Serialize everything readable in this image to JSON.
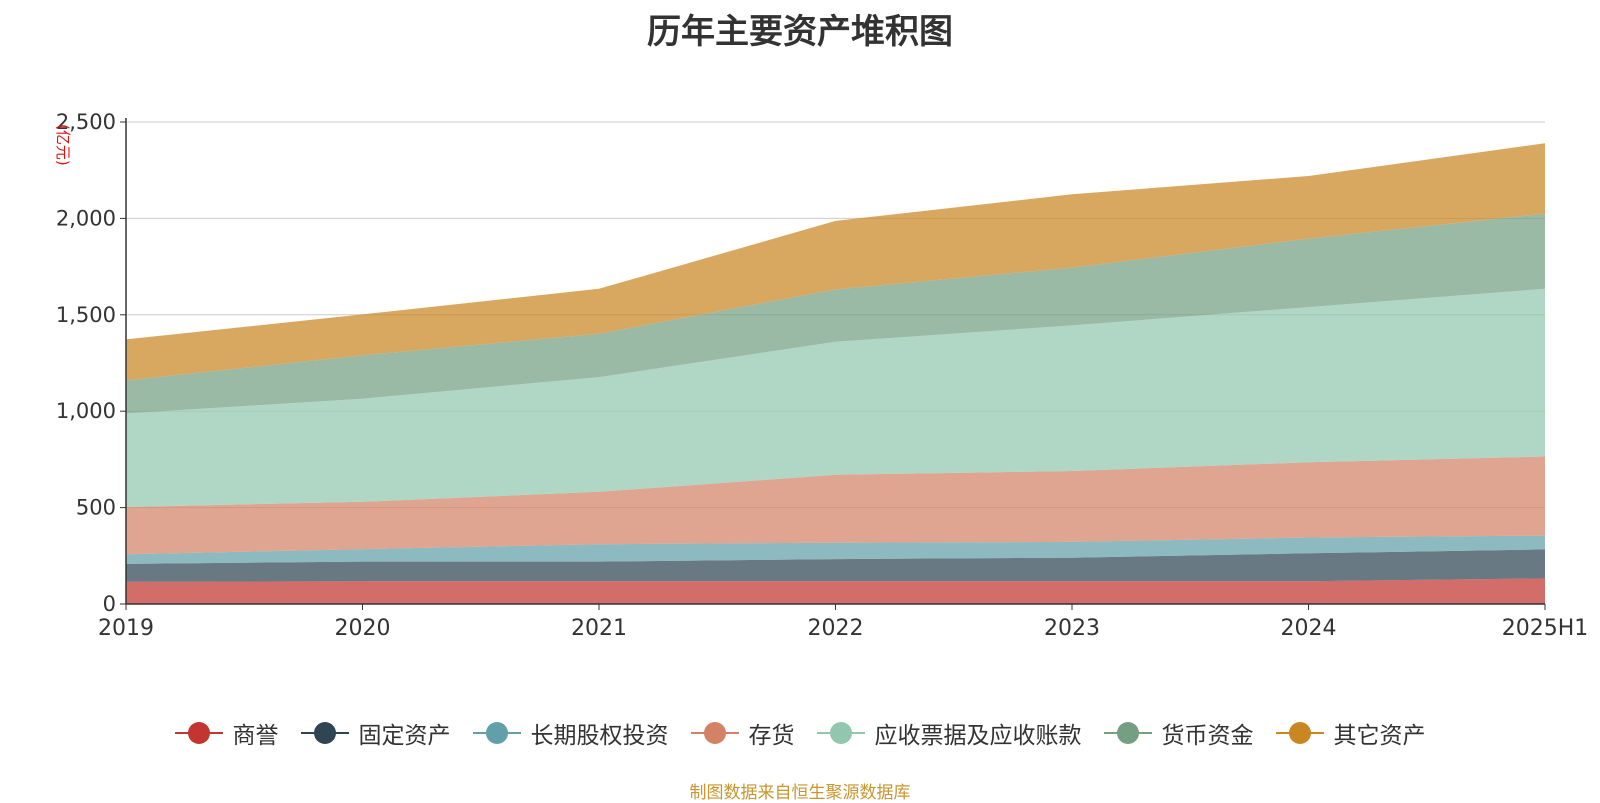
{
  "chart_data": {
    "type": "area",
    "stacked": true,
    "title": "历年主要资产堆积图",
    "unit_label": "亿元",
    "categories": [
      "2019",
      "2020",
      "2021",
      "2022",
      "2023",
      "2024",
      "2025H1"
    ],
    "ylim": [
      0,
      2500
    ],
    "y_ticks": [
      "0",
      "500",
      "1,000",
      "1,500",
      "2,000",
      "2,500"
    ],
    "grid": true,
    "legend_position": "bottom",
    "series": [
      {
        "name": "商誉",
        "color": "#c23531",
        "values": [
          115,
          118,
          118,
          118,
          118,
          118,
          133
        ]
      },
      {
        "name": "固定资产",
        "color": "#2f4554",
        "values": [
          93,
          102,
          102,
          115,
          122,
          145,
          150
        ]
      },
      {
        "name": "长期股权投资",
        "color": "#61a0a8",
        "values": [
          50,
          65,
          90,
          85,
          82,
          82,
          72
        ]
      },
      {
        "name": "存货",
        "color": "#d48265",
        "values": [
          245,
          245,
          272,
          352,
          368,
          390,
          410
        ]
      },
      {
        "name": "应收票据及应收账款",
        "color": "#91c7ae",
        "values": [
          485,
          535,
          595,
          690,
          755,
          805,
          870
        ]
      },
      {
        "name": "货币资金",
        "color": "#749f83",
        "values": [
          172,
          225,
          225,
          272,
          300,
          355,
          390
        ]
      },
      {
        "name": "其它资产",
        "color": "#ca8622",
        "values": [
          213,
          212,
          233,
          355,
          380,
          325,
          365
        ]
      }
    ]
  },
  "footer": {
    "source": "制图数据来自恒生聚源数据库"
  }
}
